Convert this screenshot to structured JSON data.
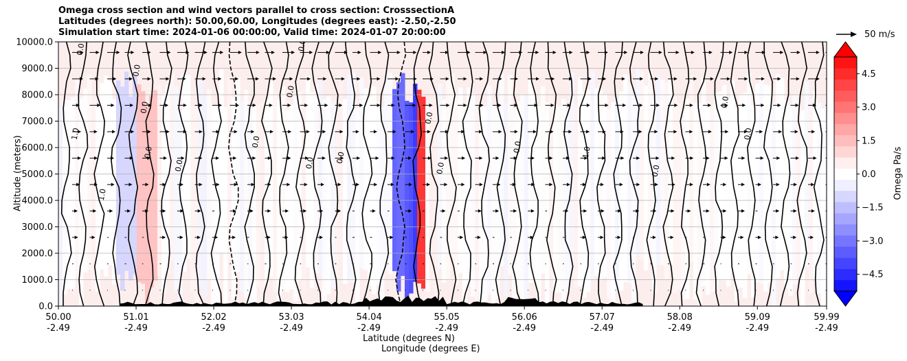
{
  "title": {
    "line1": "Omega cross section and wind vectors parallel to cross section: CrosssectionA",
    "line2": "Latitudes (degrees north): 50.00,60.00, Longitudes (degrees east): -2.50,-2.50",
    "line3": "Simulation start time: 2024-01-06 00:00:00, Valid time: 2024-01-07 20:00:00"
  },
  "chart_data": {
    "type": "heatmap",
    "subtype": "contourf cross-section with contour lines and wind vectors",
    "xlabel_line1": "Latitude (degrees N)",
    "xlabel_line2": "Longitude (degrees E)",
    "ylabel": "Altitude (meters)",
    "x_ticks": [
      {
        "lat": "50.00",
        "lon": "-2.49"
      },
      {
        "lat": "51.01",
        "lon": "-2.49"
      },
      {
        "lat": "52.02",
        "lon": "-2.49"
      },
      {
        "lat": "53.03",
        "lon": "-2.49"
      },
      {
        "lat": "54.04",
        "lon": "-2.49"
      },
      {
        "lat": "55.05",
        "lon": "-2.49"
      },
      {
        "lat": "56.06",
        "lon": "-2.49"
      },
      {
        "lat": "57.07",
        "lon": "-2.49"
      },
      {
        "lat": "58.08",
        "lon": "-2.49"
      },
      {
        "lat": "59.09",
        "lon": "-2.49"
      },
      {
        "lat": "59.99",
        "lon": "-2.49"
      }
    ],
    "xlim": [
      50.0,
      59.99
    ],
    "y_ticks": [
      "0.0",
      "1000.0",
      "2000.0",
      "3000.0",
      "4000.0",
      "5000.0",
      "6000.0",
      "7000.0",
      "8000.0",
      "9000.0",
      "10000.0"
    ],
    "ylim": [
      0,
      10000
    ],
    "grid": "horizontal",
    "colorbar": {
      "label": "Omega Pa/s",
      "ticks": [
        "4.5",
        "3.0",
        "1.5",
        "0.0",
        "−1.5",
        "−3.0",
        "−4.5"
      ],
      "range": [
        -5.25,
        5.25
      ],
      "levels": 21,
      "extend": "both",
      "cmap": "bwr"
    },
    "vector_reference": "50 m/s",
    "contour_labels_present": [
      "0.0",
      "1.0",
      "-1.0"
    ],
    "features": [
      {
        "desc": "strong ascent/descent couplet",
        "lat": 54.6,
        "omega_min": -4.5,
        "omega_max": 4.5
      },
      {
        "desc": "terrain silhouette near surface",
        "lat_range": [
          50.9,
          57.5
        ]
      }
    ]
  },
  "colors": {
    "strong_red": "#ff0000",
    "light_red": "#fdeeee",
    "light_blue": "#eeeefd",
    "strong_blue": "#0000ff",
    "contour": "#000000",
    "terrain": "#000000",
    "grid": "#b0b0b0"
  }
}
